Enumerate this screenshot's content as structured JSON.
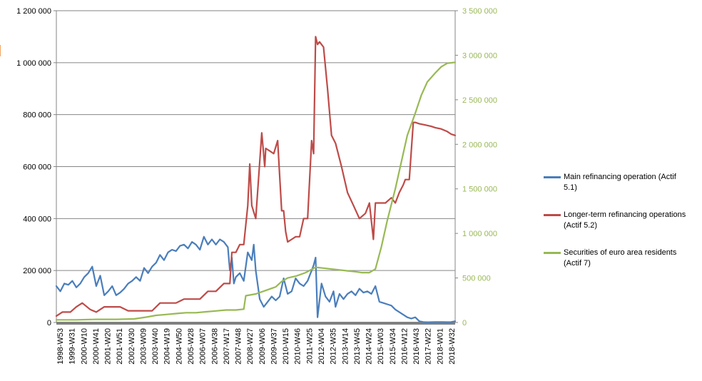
{
  "chart_data": {
    "type": "line",
    "title": "",
    "xlabel": "",
    "ylabel": "",
    "ylim_left": [
      0,
      1200000
    ],
    "ylim_right": [
      0,
      3500000
    ],
    "yticks_left": [
      "0",
      "200 000",
      "400 000",
      "600 000",
      "800 000",
      "1 000 000",
      "1 200 000"
    ],
    "yticks_right": [
      "0",
      "500 000",
      "1 000 000",
      "1 500 000",
      "2 000 000",
      "2 500 000",
      "3 000 000",
      "3 500 000"
    ],
    "xticks": [
      "1998-W53",
      "1999-W31",
      "2000-W10",
      "2000-W41",
      "2001-W20",
      "2001-W51",
      "2002-W30",
      "2003-W09",
      "2003-W40",
      "2004-W19",
      "2004-W50",
      "2005-W28",
      "2006-W07",
      "2006-W38",
      "2007-W17",
      "2007-W48",
      "2008-W27",
      "2009-W06",
      "2009-W37",
      "2010-W15",
      "2010-W46",
      "2011-W25",
      "2012-W04",
      "2012-W35",
      "2013-W14",
      "2013-W45",
      "2014-W24",
      "2015-W03",
      "2015-W34",
      "2016-W12",
      "2016-W43",
      "2017-W22",
      "2018-W01",
      "2018-W32"
    ],
    "grid": true,
    "legend_position": "right",
    "series": [
      {
        "name": "Main refinancing operation (Actif 5.1)",
        "axis": "left",
        "color": "#4a7ebb",
        "x": [
          1999.0,
          1999.2,
          1999.4,
          1999.6,
          1999.8,
          2000.0,
          2000.2,
          2000.4,
          2000.6,
          2000.8,
          2001.0,
          2001.2,
          2001.4,
          2001.6,
          2001.8,
          2002.0,
          2002.2,
          2002.4,
          2002.6,
          2002.8,
          2003.0,
          2003.2,
          2003.4,
          2003.6,
          2003.8,
          2004.0,
          2004.2,
          2004.4,
          2004.6,
          2004.8,
          2005.0,
          2005.2,
          2005.4,
          2005.6,
          2005.8,
          2006.0,
          2006.2,
          2006.4,
          2006.6,
          2006.8,
          2007.0,
          2007.2,
          2007.4,
          2007.6,
          2007.7,
          2007.8,
          2007.9,
          2008.0,
          2008.2,
          2008.4,
          2008.6,
          2008.8,
          2008.9,
          2009.0,
          2009.2,
          2009.4,
          2009.6,
          2009.8,
          2010.0,
          2010.2,
          2010.4,
          2010.6,
          2010.8,
          2011.0,
          2011.2,
          2011.4,
          2011.6,
          2011.8,
          2011.9,
          2012.0,
          2012.1,
          2012.3,
          2012.5,
          2012.7,
          2012.9,
          2013.0,
          2013.2,
          2013.4,
          2013.6,
          2013.8,
          2014.0,
          2014.2,
          2014.4,
          2014.6,
          2014.8,
          2015.0,
          2015.2,
          2015.4,
          2015.6,
          2015.8,
          2016.0,
          2016.2,
          2016.4,
          2016.6,
          2016.8,
          2017.0,
          2017.2,
          2017.4,
          2017.6,
          2017.8,
          2018.0,
          2018.2,
          2018.4,
          2018.6,
          2018.8,
          2019.0
        ],
        "values": [
          140000,
          120000,
          150000,
          145000,
          160000,
          135000,
          150000,
          175000,
          190000,
          215000,
          140000,
          180000,
          105000,
          120000,
          140000,
          105000,
          115000,
          130000,
          150000,
          160000,
          175000,
          160000,
          210000,
          190000,
          215000,
          230000,
          260000,
          240000,
          270000,
          280000,
          275000,
          295000,
          300000,
          285000,
          310000,
          300000,
          280000,
          330000,
          300000,
          320000,
          300000,
          320000,
          310000,
          290000,
          200000,
          250000,
          150000,
          175000,
          190000,
          160000,
          270000,
          240000,
          300000,
          200000,
          90000,
          60000,
          80000,
          100000,
          85000,
          100000,
          170000,
          110000,
          120000,
          170000,
          150000,
          140000,
          160000,
          200000,
          220000,
          250000,
          20000,
          150000,
          100000,
          80000,
          120000,
          60000,
          110000,
          90000,
          110000,
          120000,
          105000,
          130000,
          115000,
          120000,
          110000,
          140000,
          80000,
          75000,
          70000,
          65000,
          50000,
          40000,
          30000,
          20000,
          15000,
          20000,
          5000,
          2000,
          1000,
          1500,
          2000,
          2000,
          2000,
          1500,
          2000,
          5000
        ]
      },
      {
        "name": "Longer-term refinancing operations (Actif 5.2)",
        "axis": "left",
        "color": "#be4b48",
        "x": [
          1999.0,
          1999.3,
          1999.7,
          2000.0,
          2000.3,
          2000.7,
          2001.0,
          2001.4,
          2001.8,
          2002.2,
          2002.6,
          2003.0,
          2003.4,
          2003.8,
          2004.2,
          2004.6,
          2005.0,
          2005.4,
          2005.8,
          2006.2,
          2006.6,
          2007.0,
          2007.4,
          2007.7,
          2007.8,
          2008.0,
          2008.2,
          2008.4,
          2008.6,
          2008.7,
          2008.8,
          2009.0,
          2009.3,
          2009.45,
          2009.5,
          2009.7,
          2009.9,
          2010.1,
          2010.3,
          2010.4,
          2010.5,
          2010.6,
          2010.8,
          2011.0,
          2011.2,
          2011.4,
          2011.6,
          2011.8,
          2011.9,
          2012.0,
          2012.1,
          2012.2,
          2012.4,
          2012.6,
          2012.8,
          2013.0,
          2013.3,
          2013.6,
          2013.9,
          2014.2,
          2014.5,
          2014.7,
          2014.9,
          2015.0,
          2015.1,
          2015.3,
          2015.5,
          2015.8,
          2016.0,
          2016.2,
          2016.4,
          2016.5,
          2016.7,
          2016.9,
          2017.0,
          2017.2,
          2017.5,
          2017.8,
          2018.0,
          2018.3,
          2018.6,
          2018.8,
          2019.0
        ],
        "values": [
          25000,
          40000,
          40000,
          60000,
          75000,
          50000,
          40000,
          60000,
          60000,
          60000,
          45000,
          45000,
          45000,
          45000,
          75000,
          75000,
          75000,
          90000,
          90000,
          90000,
          120000,
          120000,
          150000,
          150000,
          270000,
          270000,
          300000,
          300000,
          450000,
          610000,
          450000,
          400000,
          730000,
          600000,
          670000,
          660000,
          650000,
          700000,
          430000,
          430000,
          350000,
          310000,
          320000,
          330000,
          330000,
          400000,
          400000,
          700000,
          650000,
          1100000,
          1070000,
          1080000,
          1060000,
          900000,
          720000,
          690000,
          600000,
          500000,
          450000,
          400000,
          420000,
          460000,
          320000,
          460000,
          460000,
          460000,
          460000,
          480000,
          460000,
          500000,
          530000,
          550000,
          550000,
          770000,
          770000,
          765000,
          760000,
          755000,
          750000,
          745000,
          735000,
          725000,
          720000
        ]
      },
      {
        "name": "Securities of euro area residents (Actif 7)",
        "axis": "right",
        "color": "#98b954",
        "x": [
          1999.0,
          2000.0,
          2001.0,
          2002.0,
          2002.9,
          2003.5,
          2004.0,
          2004.5,
          2005.0,
          2005.5,
          2006.0,
          2006.5,
          2007.0,
          2007.5,
          2008.0,
          2008.4,
          2008.5,
          2009.0,
          2009.5,
          2010.0,
          2010.3,
          2010.6,
          2011.0,
          2011.5,
          2012.0,
          2012.4,
          2012.8,
          2013.2,
          2013.6,
          2014.0,
          2014.3,
          2014.7,
          2015.0,
          2015.3,
          2015.6,
          2016.0,
          2016.3,
          2016.6,
          2017.0,
          2017.3,
          2017.6,
          2018.0,
          2018.3,
          2018.6,
          2019.0
        ],
        "values": [
          30000,
          30000,
          35000,
          35000,
          40000,
          60000,
          80000,
          90000,
          100000,
          110000,
          110000,
          120000,
          130000,
          140000,
          140000,
          150000,
          300000,
          320000,
          360000,
          400000,
          460000,
          500000,
          520000,
          560000,
          620000,
          610000,
          600000,
          590000,
          580000,
          570000,
          560000,
          560000,
          600000,
          850000,
          1150000,
          1500000,
          1800000,
          2100000,
          2350000,
          2550000,
          2700000,
          2800000,
          2870000,
          2910000,
          2920000
        ]
      }
    ]
  }
}
